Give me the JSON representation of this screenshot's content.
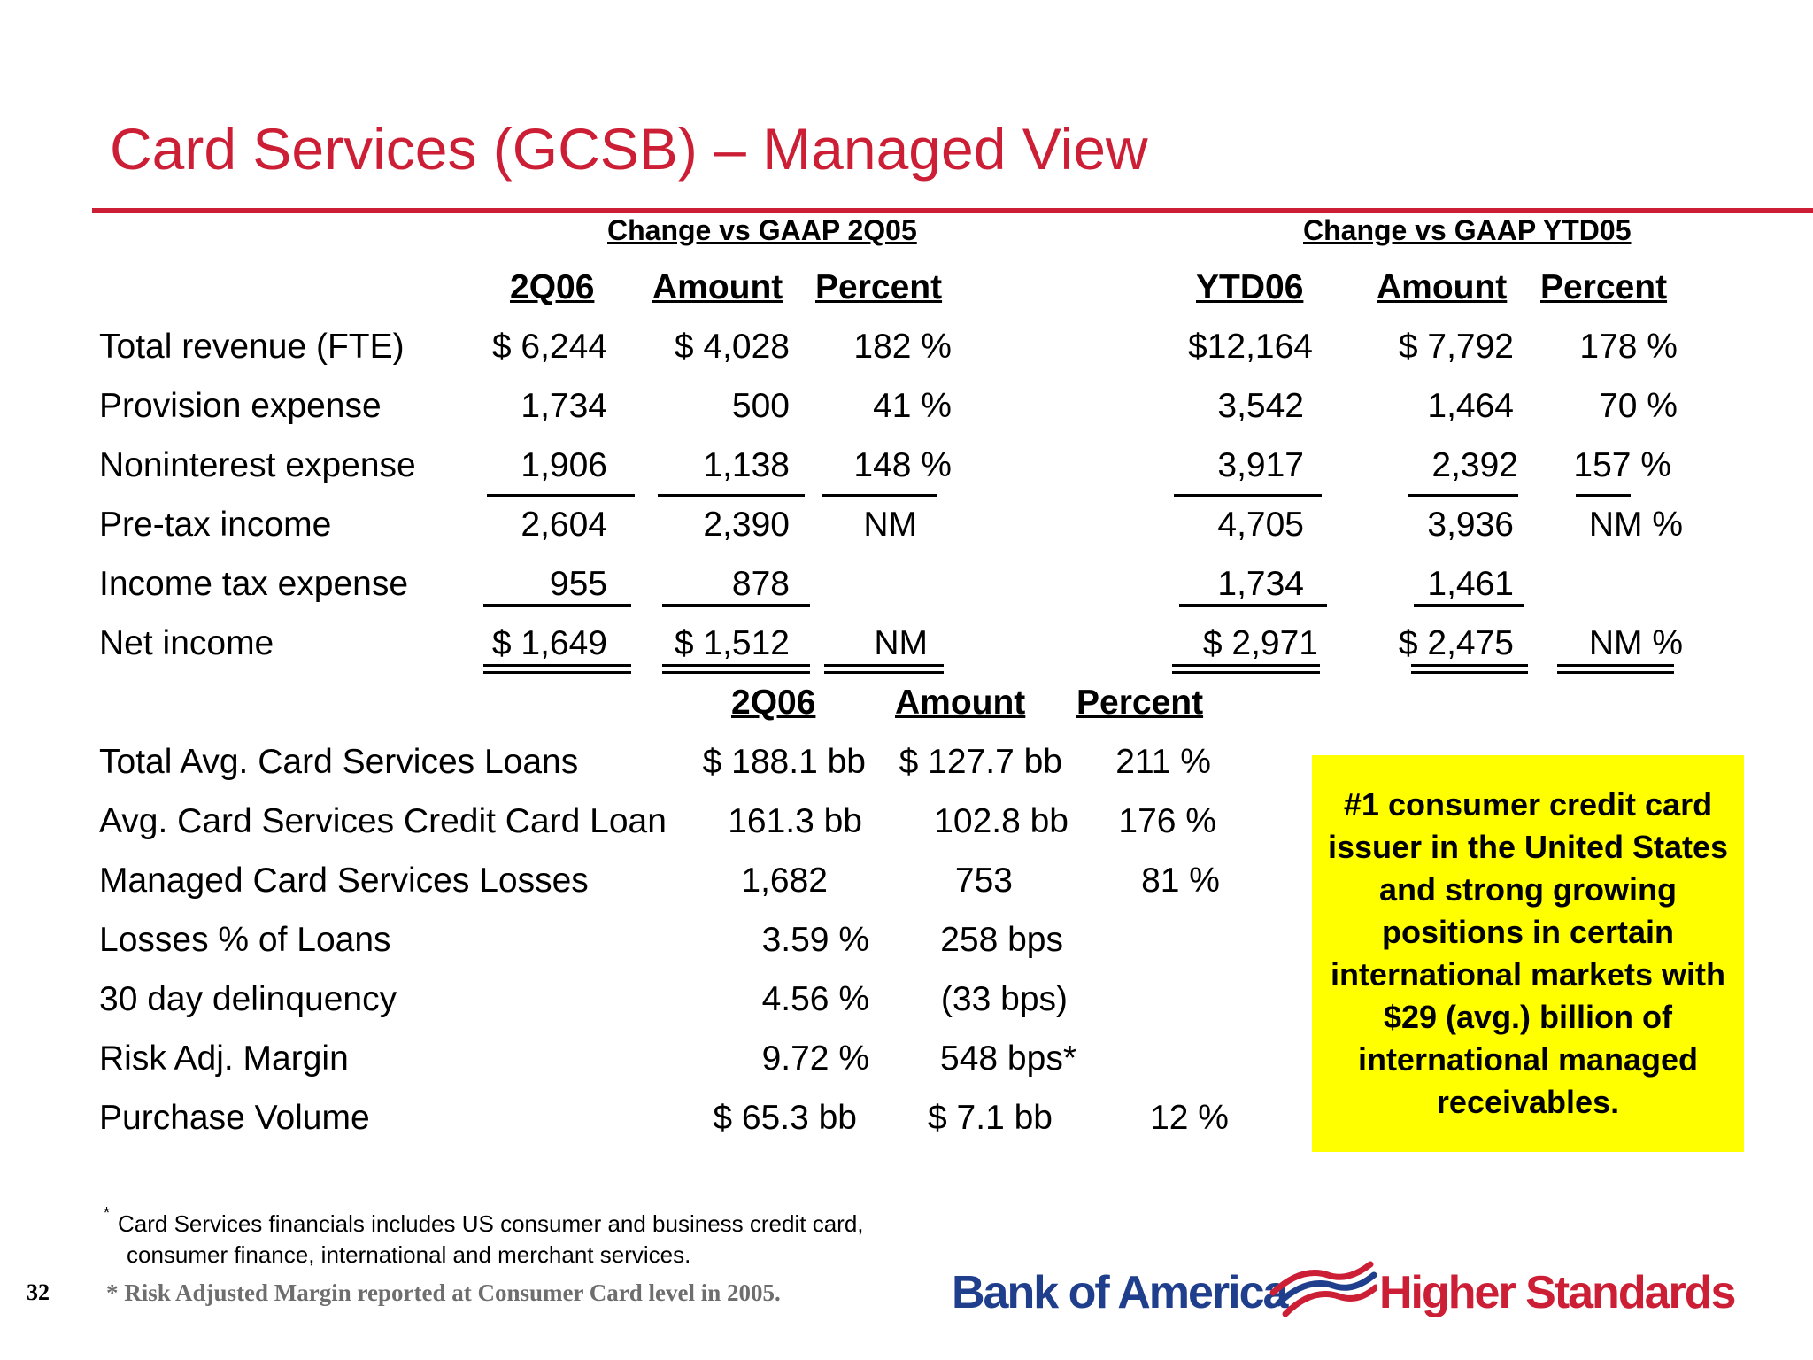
{
  "title": "Card Services (GCSB) – Managed View",
  "groups": {
    "vs_2q05": "Change vs GAAP 2Q05",
    "vs_ytd05": "Change vs GAAP YTD05"
  },
  "top_headers": {
    "q": "2Q06",
    "q_amount": "Amount",
    "q_percent": "Percent",
    "ytd": "YTD06",
    "ytd_amount": "Amount",
    "ytd_percent": "Percent"
  },
  "top_rows": [
    {
      "label": "Total revenue (FTE)",
      "q": "$ 6,244",
      "q_amt": "$  4,028",
      "q_pct": "182 %",
      "ytd": "$12,164",
      "ytd_amt": "$ 7,792",
      "ytd_pct": "178 %"
    },
    {
      "label": "Provision expense",
      "q": "1,734",
      "q_amt": "500",
      "q_pct": "41 %",
      "ytd": "3,542",
      "ytd_amt": "1,464",
      "ytd_pct": "70 %"
    },
    {
      "label": "Noninterest expense",
      "q": "1,906",
      "q_amt": "1,138",
      "q_pct": "148 %",
      "ytd": "3,917",
      "ytd_amt": "2,392",
      "ytd_pct": "157 %"
    },
    {
      "label": "Pre-tax income",
      "q": "2,604",
      "q_amt": "2,390",
      "q_pct": "NM",
      "ytd": "4,705",
      "ytd_amt": "3,936",
      "ytd_pct": "NM %"
    },
    {
      "label": "Income tax expense",
      "q": "955",
      "q_amt": "878",
      "q_pct": "",
      "ytd": "1,734",
      "ytd_amt": "1,461",
      "ytd_pct": ""
    },
    {
      "label": "Net income",
      "q": "$  1,649",
      "q_amt": "$  1,512",
      "q_pct": "NM",
      "ytd": "$ 2,971",
      "ytd_amt": "$  2,475",
      "ytd_pct": "NM %"
    }
  ],
  "bottom_headers": {
    "q": "2Q06",
    "amount": "Amount",
    "percent": "Percent"
  },
  "bottom_rows": [
    {
      "label": "Total Avg. Card Services Loans",
      "q": "$ 188.1 bb",
      "amt": "$  127.7 bb",
      "pct": "211 %"
    },
    {
      "label": "Avg. Card Services Credit Card Loan",
      "q": "161.3 bb",
      "amt": "102.8 bb",
      "pct": "176 %"
    },
    {
      "label": "Managed Card Services Losses",
      "q": "1,682",
      "amt": "753",
      "pct": "81 %"
    },
    {
      "label": "Losses % of Loans",
      "q": "3.59 %",
      "amt": "258 bps",
      "pct": ""
    },
    {
      "label": "30 day delinquency",
      "q": "4.56 %",
      "amt": "(33 bps)",
      "pct": ""
    },
    {
      "label": "Risk Adj. Margin",
      "q": "9.72 %",
      "amt": "548 bps*",
      "pct": ""
    },
    {
      "label": "Purchase Volume",
      "q": "$ 65.3 bb",
      "amt": "$ 7.1 bb",
      "pct": "12 %"
    }
  ],
  "callout": "#1 consumer credit card issuer in the United States and strong growing positions in certain international markets with $29 (avg.) billion of international managed receivables.",
  "footnotes": {
    "marker": "*",
    "line1": "Card Services financials includes US consumer and business credit card,",
    "line2": "consumer finance, international and merchant services.",
    "risk_note": "* Risk Adjusted Margin reported at Consumer Card level in 2005."
  },
  "page_number": "32",
  "branding": {
    "company": "Bank of America",
    "tagline": "Higher Standards",
    "colors": {
      "brand_red": "#cc1f36",
      "brand_blue": "#1f3e8c",
      "callout_bg": "#ffff00"
    },
    "logo_icon": "flagscape-icon"
  }
}
